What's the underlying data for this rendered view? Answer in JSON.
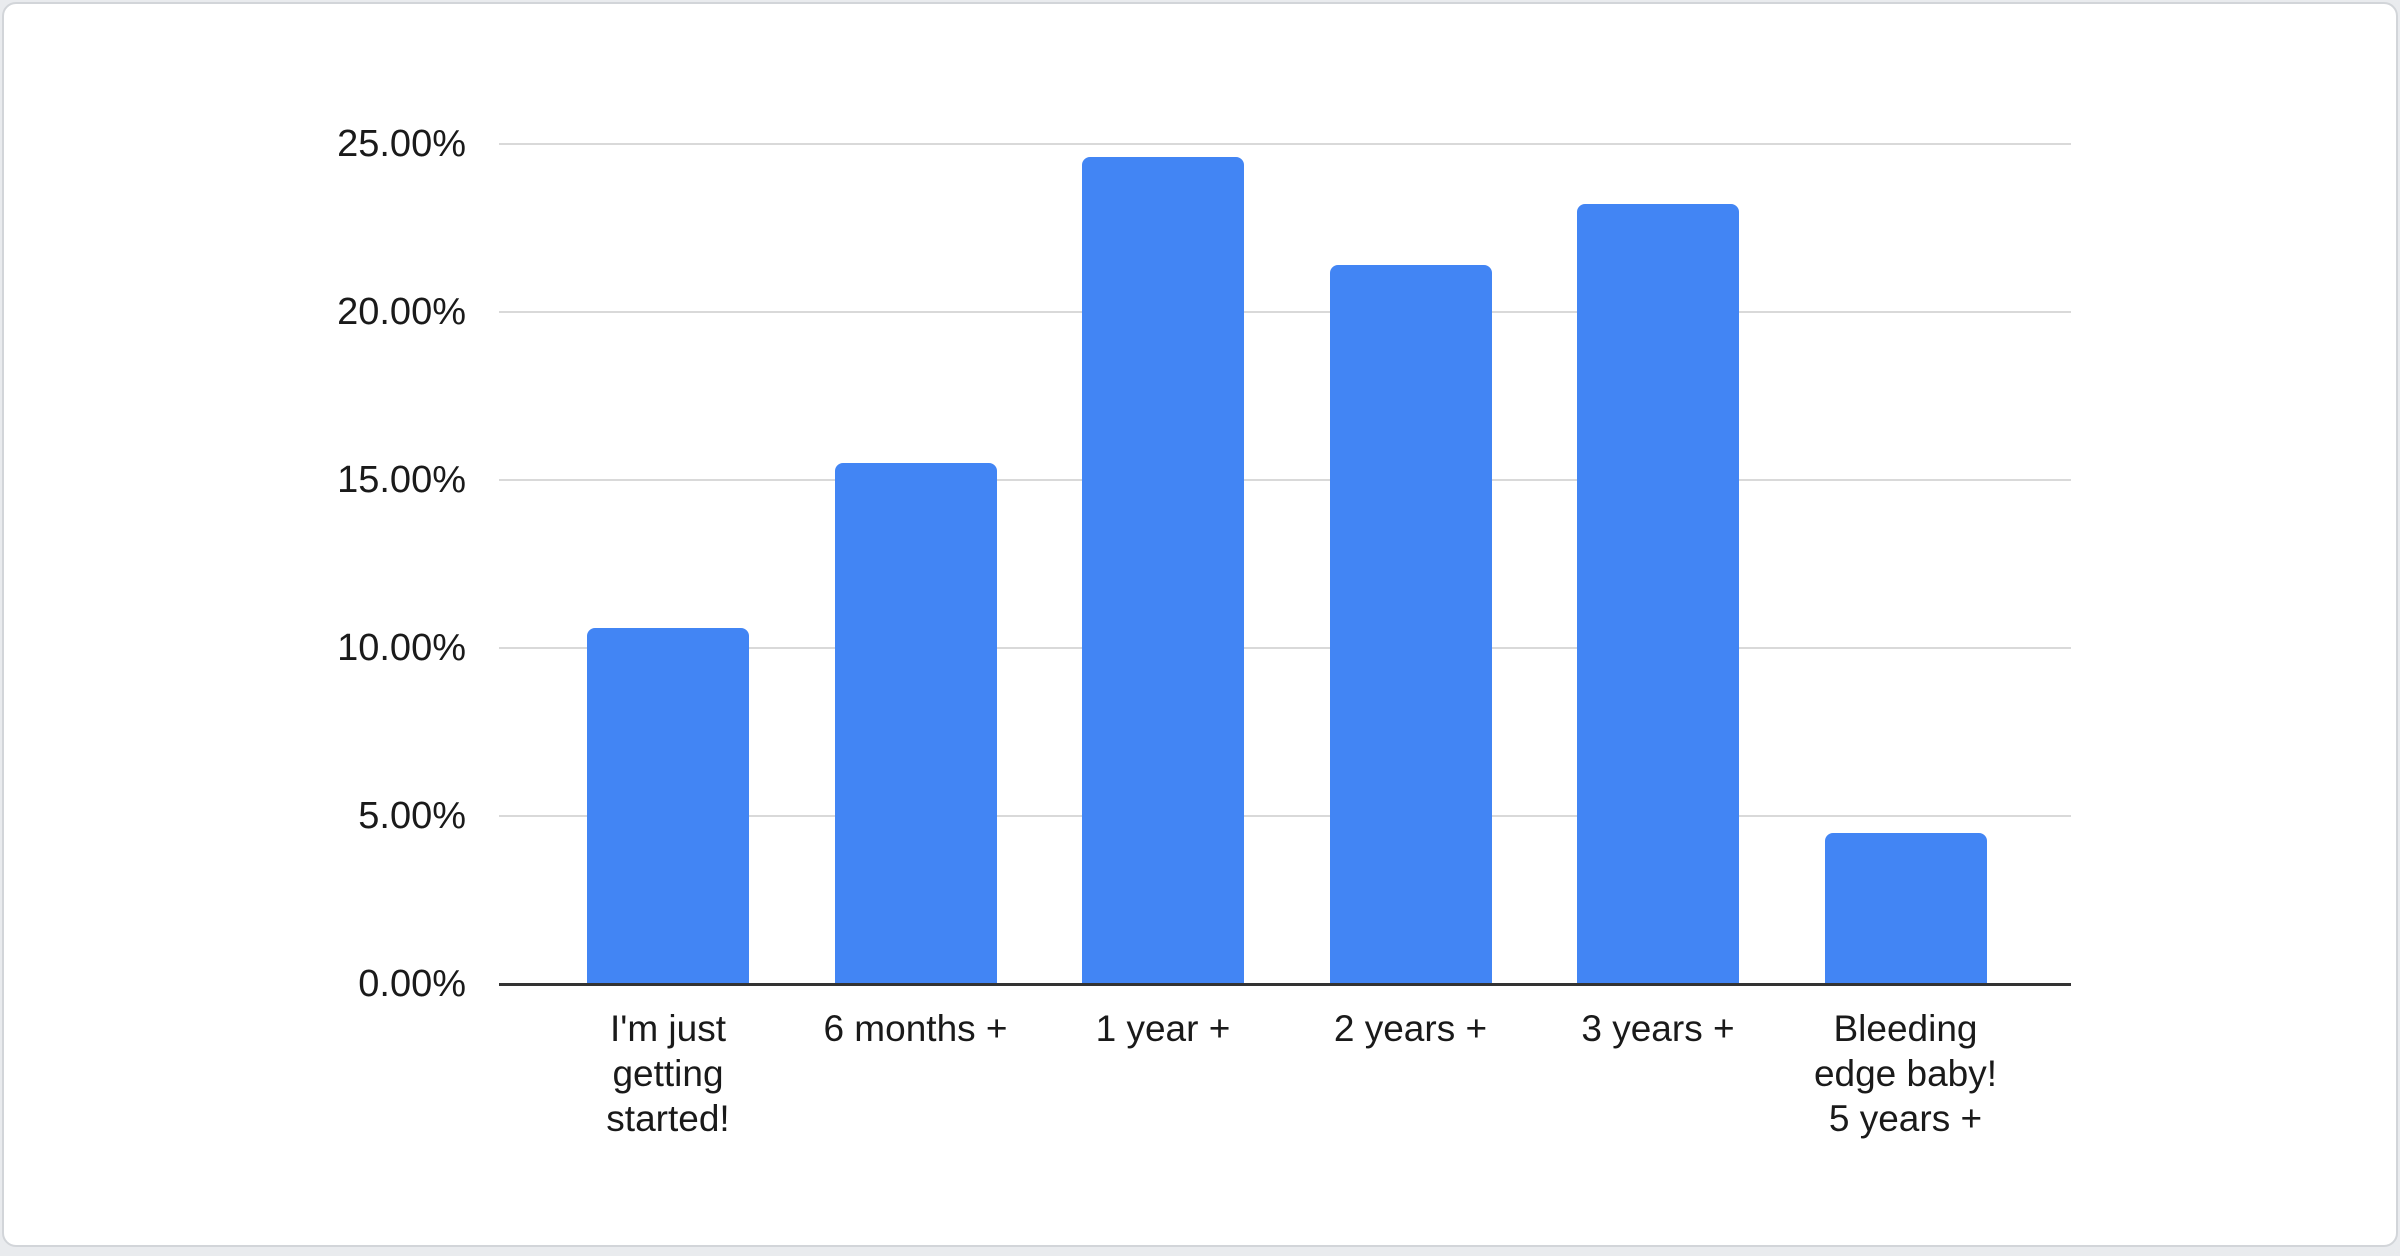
{
  "page": {
    "background_color": "#e9ebee",
    "card": {
      "background_color": "#ffffff",
      "border_color": "#d2d5d9"
    }
  },
  "chart_data": {
    "type": "bar",
    "title": "",
    "categories": [
      "I'm just\ngetting\nstarted!",
      "6 months +",
      "1 year +",
      "2 years +",
      "3 years +",
      "Bleeding\nedge baby!\n5 years +"
    ],
    "values": [
      10.6,
      15.5,
      24.6,
      21.4,
      23.2,
      4.5
    ],
    "value_format": "percent",
    "y_ticks": [
      "25.00%",
      "20.00%",
      "15.00%",
      "10.00%",
      "5.00%",
      "0.00%"
    ],
    "y_tick_values": [
      25,
      20,
      15,
      10,
      5,
      0
    ],
    "ylim": [
      0,
      25
    ],
    "xlabel": "",
    "ylabel": "",
    "legend_position": "none",
    "grid": "horizontal",
    "bar_color": "#4285f4",
    "gridline_color": "#d9d9d9",
    "axis_line_color": "#333333",
    "label_color": "#1a1a1a"
  }
}
